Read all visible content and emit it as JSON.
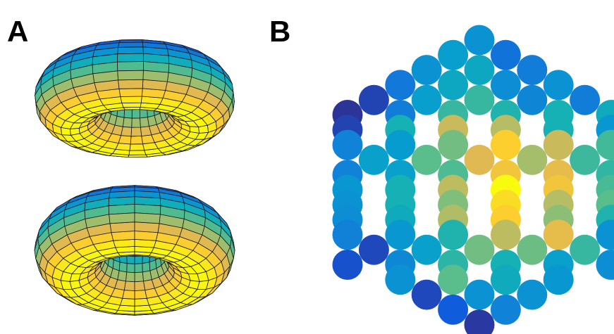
{
  "panels": {
    "a": {
      "label": "A"
    },
    "b": {
      "label": "B"
    }
  },
  "colors": {
    "outline": "#1a1a1a",
    "parula_low": "#352a87",
    "parula_high": "#f9fb0e"
  },
  "hex_grid": {
    "note_levels_are_colormap_fraction": true,
    "rows": [
      [
        0.3
      ],
      [
        0.35,
        0.18
      ],
      [
        0.3,
        0.4,
        0.22
      ],
      [
        0.2,
        0.4,
        0.28,
        0.3
      ],
      [
        0.05,
        0.35,
        0.52,
        0.25,
        0.22
      ],
      [
        0.02,
        0.22,
        0.52,
        0.48,
        0.46,
        0.42
      ],
      [
        0.05,
        0.46,
        0.76,
        0.73,
        0.46,
        0.32
      ],
      [
        0.24,
        0.34,
        0.62,
        0.9,
        0.76,
        0.54
      ],
      [
        0.36,
        0.58,
        0.8,
        0.7,
        0.53
      ],
      [
        0.24,
        0.36,
        0.56,
        0.86,
        0.82,
        0.51
      ],
      [
        0.32,
        0.46,
        0.74,
        1.0,
        0.86,
        0.55
      ],
      [
        0.3,
        0.46,
        0.64,
        0.93,
        0.73,
        0.58
      ],
      [
        0.28,
        0.42,
        0.72,
        0.9,
        0.66,
        0.48
      ],
      [
        0.23,
        0.32,
        0.48,
        0.74,
        0.82,
        0.3
      ],
      [
        0.06,
        0.36,
        0.62,
        0.61,
        0.52
      ],
      [
        0.08,
        0.26,
        0.5,
        0.46,
        0.36,
        0.28
      ],
      [
        0.3,
        0.58,
        0.42,
        0.32
      ],
      [
        0.06,
        0.3,
        0.3
      ],
      [
        0.1,
        0.24
      ],
      [
        0.03
      ]
    ]
  }
}
